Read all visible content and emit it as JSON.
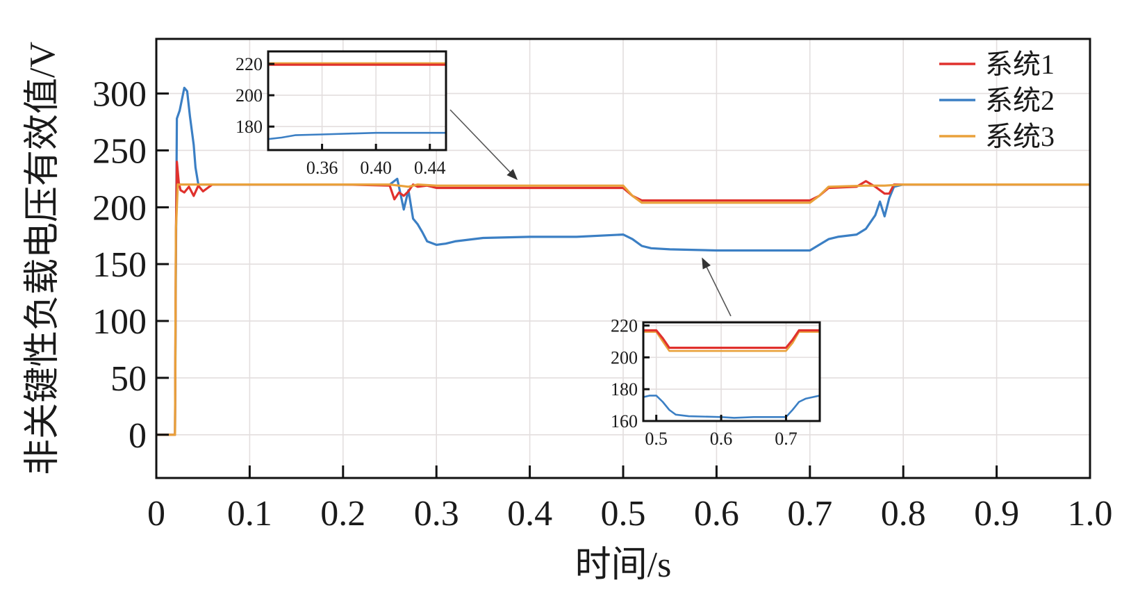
{
  "chart_data": {
    "type": "line",
    "xlabel": "时间/s",
    "ylabel": "非关键性负载电压有效值/V",
    "xlim": [
      0,
      1.0
    ],
    "ylim": [
      -38,
      348
    ],
    "x_ticks": [
      "0",
      "0.1",
      "0.2",
      "0.3",
      "0.4",
      "0.5",
      "0.6",
      "0.7",
      "0.8",
      "0.9",
      "1.0"
    ],
    "y_ticks": [
      "0",
      "50",
      "100",
      "150",
      "200",
      "250",
      "300"
    ],
    "x_tick_values": [
      0,
      0.1,
      0.2,
      0.3,
      0.4,
      0.5,
      0.6,
      0.7,
      0.8,
      0.9,
      1.0
    ],
    "y_tick_values": [
      0,
      50,
      100,
      150,
      200,
      250,
      300
    ],
    "grid": true,
    "legend_position": "top-right",
    "series": [
      {
        "name": "系统1",
        "color": "#e0312d",
        "x": [
          0,
          0.02,
          0.021,
          0.022,
          0.024,
          0.026,
          0.03,
          0.035,
          0.04,
          0.045,
          0.05,
          0.055,
          0.06,
          0.1,
          0.2,
          0.25,
          0.255,
          0.26,
          0.265,
          0.27,
          0.275,
          0.28,
          0.29,
          0.3,
          0.35,
          0.4,
          0.45,
          0.5,
          0.51,
          0.52,
          0.6,
          0.7,
          0.71,
          0.72,
          0.75,
          0.76,
          0.77,
          0.78,
          0.785,
          0.79,
          0.8,
          1.0
        ],
        "values": [
          0,
          0,
          175,
          240,
          222,
          215,
          213,
          218,
          210,
          219,
          214,
          217,
          220,
          220,
          220,
          219,
          207,
          213,
          210,
          214,
          220,
          218,
          219,
          217,
          217,
          217,
          217,
          217,
          210,
          206,
          206,
          206,
          210,
          217,
          218,
          223,
          218,
          212,
          212,
          220,
          220,
          220
        ]
      },
      {
        "name": "系统2",
        "color": "#3b7fc4",
        "x": [
          0,
          0.02,
          0.021,
          0.022,
          0.025,
          0.03,
          0.033,
          0.036,
          0.04,
          0.042,
          0.045,
          0.05,
          0.055,
          0.06,
          0.1,
          0.2,
          0.25,
          0.258,
          0.262,
          0.265,
          0.27,
          0.275,
          0.28,
          0.285,
          0.29,
          0.3,
          0.31,
          0.32,
          0.35,
          0.4,
          0.45,
          0.5,
          0.51,
          0.52,
          0.53,
          0.55,
          0.6,
          0.62,
          0.65,
          0.7,
          0.71,
          0.72,
          0.73,
          0.75,
          0.76,
          0.77,
          0.775,
          0.78,
          0.785,
          0.79,
          0.8,
          1.0
        ],
        "values": [
          0,
          0,
          150,
          278,
          285,
          305,
          302,
          280,
          255,
          235,
          220,
          220,
          220,
          220,
          220,
          220,
          220,
          225,
          210,
          198,
          215,
          190,
          185,
          178,
          170,
          167,
          168,
          170,
          173,
          174,
          174,
          176,
          172,
          166,
          164,
          163,
          162,
          162,
          162,
          162,
          167,
          172,
          174,
          176,
          181,
          193,
          205,
          192,
          208,
          218,
          220,
          220
        ]
      },
      {
        "name": "系统3",
        "color": "#e9a13b",
        "x": [
          0,
          0.02,
          0.021,
          0.023,
          0.03,
          0.06,
          0.1,
          0.2,
          0.25,
          0.26,
          0.27,
          0.28,
          0.3,
          0.4,
          0.5,
          0.51,
          0.52,
          0.6,
          0.7,
          0.71,
          0.72,
          0.76,
          0.77,
          0.78,
          0.8,
          1.0
        ],
        "values": [
          0,
          0,
          180,
          220,
          220,
          220,
          220,
          220,
          220,
          219,
          218,
          220,
          219,
          219,
          219,
          210,
          204,
          204,
          204,
          210,
          218,
          219,
          219,
          219,
          220,
          220
        ]
      }
    ],
    "insets": [
      {
        "xlim": [
          0.32,
          0.452
        ],
        "ylim": [
          165,
          228
        ],
        "x_ticks": [
          "0.36",
          "0.40",
          "0.44"
        ],
        "x_tick_values": [
          0.36,
          0.4,
          0.44
        ],
        "y_ticks": [
          "180",
          "200",
          "220"
        ],
        "y_tick_values": [
          180,
          200,
          220
        ],
        "series": [
          {
            "x": [
              0.32,
              0.452
            ],
            "values": [
              219.5,
              219.5
            ]
          },
          {
            "x": [
              0.32,
              0.33,
              0.34,
              0.36,
              0.38,
              0.4,
              0.42,
              0.44,
              0.452
            ],
            "values": [
              172,
              173,
              174.5,
              175,
              175.5,
              176,
              176,
              176,
              176
            ]
          },
          {
            "x": [
              0.32,
              0.452
            ],
            "values": [
              220.5,
              220.5
            ]
          }
        ],
        "series_order": [
          2,
          1,
          0
        ]
      },
      {
        "xlim": [
          0.48,
          0.752
        ],
        "ylim": [
          160,
          222
        ],
        "x_ticks": [
          "0.5",
          "0.6",
          "0.7"
        ],
        "x_tick_values": [
          0.5,
          0.6,
          0.7
        ],
        "y_ticks": [
          "160",
          "180",
          "200",
          "220"
        ],
        "y_tick_values": [
          160,
          180,
          200,
          220
        ],
        "series": [
          {
            "x": [
              0.48,
              0.5,
              0.51,
              0.52,
              0.6,
              0.7,
              0.71,
              0.72,
              0.752
            ],
            "values": [
              217,
              217,
              212,
              206,
              206,
              206,
              211,
              217,
              217
            ]
          },
          {
            "x": [
              0.48,
              0.49,
              0.5,
              0.51,
              0.52,
              0.53,
              0.55,
              0.6,
              0.62,
              0.65,
              0.7,
              0.71,
              0.72,
              0.73,
              0.752
            ],
            "values": [
              175,
              176,
              176,
              172,
              167,
              164,
              163,
              162.5,
              162,
              162.5,
              162.5,
              167,
              172,
              174,
              176
            ]
          },
          {
            "x": [
              0.48,
              0.5,
              0.51,
              0.52,
              0.6,
              0.7,
              0.71,
              0.72,
              0.752
            ],
            "values": [
              216,
              216,
              210,
              204,
              204,
              204,
              209,
              216,
              216
            ]
          }
        ],
        "series_order": [
          1,
          2,
          0
        ]
      }
    ]
  }
}
